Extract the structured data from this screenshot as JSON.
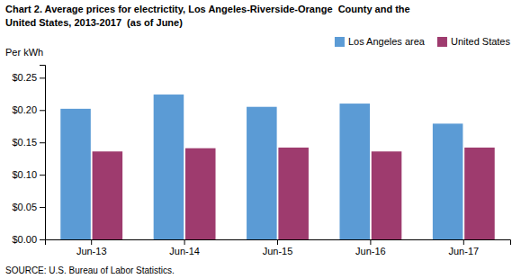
{
  "chart_data": {
    "type": "bar",
    "title": "Chart 2. Average prices for electrictity, Los Angeles-Riverside-Orange  County and the",
    "subtitle": "United States, 2013-2017  (as of June)",
    "ylabel": "Per kWh",
    "source": "SOURCE: U.S. Bureau of Labor Statistics.",
    "categories": [
      "Jun-13",
      "Jun-14",
      "Jun-15",
      "Jun-16",
      "Jun-17"
    ],
    "series": [
      {
        "name": "Los Angeles area",
        "color": "#5B9BD5",
        "values": [
          0.202,
          0.224,
          0.205,
          0.21,
          0.179
        ]
      },
      {
        "name": "United States",
        "color": "#9E3B6E",
        "values": [
          0.136,
          0.141,
          0.142,
          0.136,
          0.142
        ]
      }
    ],
    "ylim": [
      0,
      0.27
    ],
    "yticks": [
      {
        "value": 0.0,
        "label": "$0.00"
      },
      {
        "value": 0.05,
        "label": "$0.05"
      },
      {
        "value": 0.1,
        "label": "$0.10"
      },
      {
        "value": 0.15,
        "label": "$0.15"
      },
      {
        "value": 0.2,
        "label": "$0.20"
      },
      {
        "value": 0.25,
        "label": "$0.25"
      }
    ],
    "grid": false,
    "legend": "upper-right"
  }
}
